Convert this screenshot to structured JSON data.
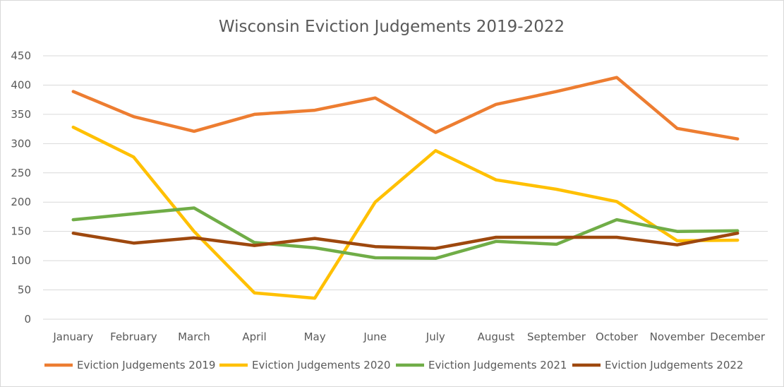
{
  "chart_data": {
    "type": "line",
    "title": "Wisconsin Eviction Judgements 2019-2022",
    "xlabel": "",
    "ylabel": "",
    "categories": [
      "January",
      "February",
      "March",
      "April",
      "May",
      "June",
      "July",
      "August",
      "September",
      "October",
      "November",
      "December"
    ],
    "ylim": [
      0,
      450
    ],
    "yticks": [
      0,
      50,
      100,
      150,
      200,
      250,
      300,
      350,
      400,
      450
    ],
    "grid": true,
    "legend_position": "bottom",
    "series": [
      {
        "name": "Eviction Judgements 2019",
        "color": "#ed7d31",
        "values": [
          389,
          346,
          321,
          350,
          357,
          378,
          319,
          367,
          389,
          413,
          326,
          308
        ]
      },
      {
        "name": "Eviction Judgements 2020",
        "color": "#ffc000",
        "values": [
          328,
          277,
          150,
          45,
          36,
          200,
          288,
          238,
          222,
          201,
          134,
          135
        ]
      },
      {
        "name": "Eviction Judgements 2021",
        "color": "#70ad47",
        "values": [
          170,
          180,
          190,
          131,
          122,
          105,
          104,
          133,
          128,
          170,
          150,
          151
        ]
      },
      {
        "name": "Eviction Judgements 2022",
        "color": "#9e480e",
        "values": [
          147,
          130,
          139,
          126,
          138,
          124,
          121,
          140,
          140,
          140,
          127,
          147
        ]
      }
    ]
  }
}
